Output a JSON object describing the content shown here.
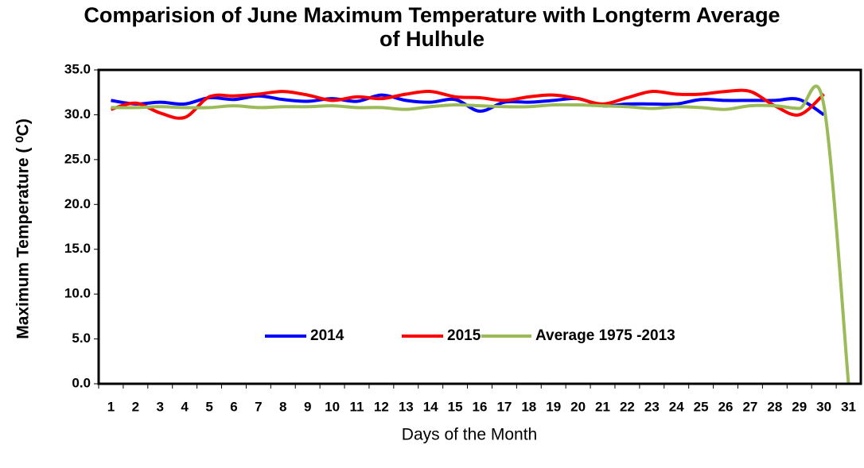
{
  "chart_data": {
    "type": "line",
    "title": "Comparision of June Maximum Temperature with Longterm Average of Hulhule",
    "x_label": "Days of the Month",
    "y_label": "Maximum Temperature ( ⁰C)",
    "categories": [
      "1",
      "2",
      "3",
      "4",
      "5",
      "6",
      "7",
      "8",
      "9",
      "10",
      "11",
      "12",
      "13",
      "14",
      "15",
      "16",
      "17",
      "18",
      "19",
      "20",
      "21",
      "22",
      "23",
      "24",
      "25",
      "26",
      "27",
      "28",
      "29",
      "30",
      "31"
    ],
    "series": [
      {
        "name": "2014",
        "color": "#0000ff",
        "values": [
          31.6,
          31.2,
          31.4,
          31.2,
          31.9,
          31.7,
          32.1,
          31.7,
          31.5,
          31.8,
          31.5,
          32.2,
          31.6,
          31.4,
          31.7,
          30.4,
          31.4,
          31.4,
          31.6,
          31.8,
          31.0,
          31.2,
          31.2,
          31.2,
          31.7,
          31.6,
          31.6,
          31.6,
          31.7,
          30.0,
          null
        ]
      },
      {
        "name": "2015",
        "color": "#ff0000",
        "values": [
          30.6,
          31.3,
          30.2,
          29.7,
          32.0,
          32.1,
          32.3,
          32.6,
          32.2,
          31.6,
          32.0,
          31.8,
          32.3,
          32.6,
          32.0,
          31.9,
          31.6,
          32.0,
          32.2,
          31.8,
          31.2,
          31.9,
          32.6,
          32.3,
          32.3,
          32.6,
          32.6,
          31.0,
          30.0,
          32.3,
          null
        ]
      },
      {
        "name": "Average 1975 -2013",
        "color": "#9bbb59",
        "values": [
          30.8,
          30.8,
          30.9,
          30.8,
          30.8,
          31.0,
          30.8,
          30.9,
          30.9,
          31.0,
          30.8,
          30.8,
          30.6,
          30.9,
          31.1,
          31.0,
          30.9,
          30.9,
          31.1,
          31.1,
          31.0,
          30.9,
          30.7,
          30.9,
          30.8,
          30.6,
          31.0,
          31.0,
          30.7,
          31.0,
          0
        ]
      }
    ],
    "ylim": [
      0,
      35
    ],
    "yticks": [
      {
        "value": 0,
        "label": "0.0"
      },
      {
        "value": 5,
        "label": "5.0"
      },
      {
        "value": 10,
        "label": "10.0"
      },
      {
        "value": 15,
        "label": "15.0"
      },
      {
        "value": 20,
        "label": "20.0"
      },
      {
        "value": 25,
        "label": "25.0"
      },
      {
        "value": 30,
        "label": "30.0"
      },
      {
        "value": 35,
        "label": "35.0"
      }
    ],
    "grid": false,
    "smooth": true,
    "legend": "inside-bottom"
  }
}
